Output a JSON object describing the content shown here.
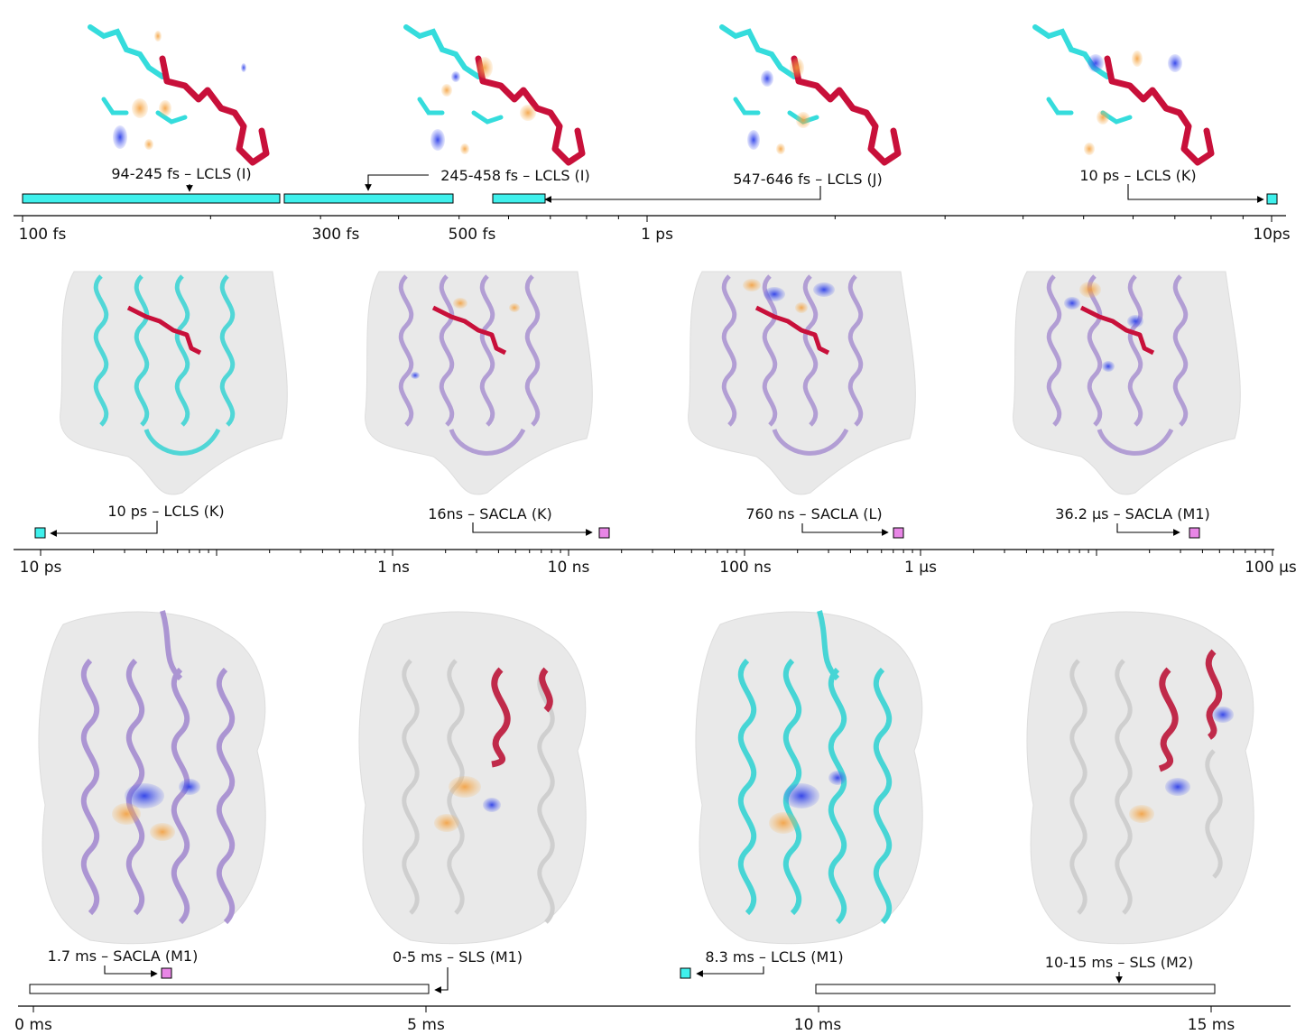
{
  "colors": {
    "lcls": "#3ff0ec",
    "sacla": "#e886e6",
    "sls": "#ffffff",
    "chromophore": "#c8103a",
    "residue": "#35dcdc",
    "helix_lcls": "#36d3d3",
    "helix_sacla": "#a58cd0",
    "helix_sls": "#cfcfcf",
    "helix_moved": "#c02a4a",
    "density_positive": "#f39a34",
    "density_negative": "#3b4ae6",
    "surface": "#e9e9e9"
  },
  "icons": {
    "marker": "square-marker-icon",
    "arrow": "arrowhead-icon"
  },
  "panel1": {
    "ticks": [
      {
        "label": "100 fs"
      },
      {
        "label": "300 fs"
      },
      {
        "label": "500 fs"
      },
      {
        "label": "1 ps"
      },
      {
        "label": "10ps"
      }
    ],
    "labels": {
      "l1": "94-245 fs – LCLS (I)",
      "l2": "245-458 fs – LCLS (I)",
      "l3": "547-646 fs – LCLS (J)",
      "l4": "10 ps – LCLS (K)"
    }
  },
  "panel2": {
    "ticks": [
      {
        "label": "10 ps"
      },
      {
        "label": "1 ns"
      },
      {
        "label": "10 ns"
      },
      {
        "label": "100 ns"
      },
      {
        "label": "1 µs"
      },
      {
        "label": "100 µs"
      }
    ],
    "labels": {
      "l1": "10 ps – LCLS (K)",
      "l2": "16ns – SACLA (K)",
      "l3": "760 ns – SACLA (L)",
      "l4": "36.2 µs – SACLA (M1)"
    }
  },
  "panel3": {
    "ticks": [
      {
        "label": "0 ms"
      },
      {
        "label": "5 ms"
      },
      {
        "label": "10 ms"
      },
      {
        "label": "15 ms"
      }
    ],
    "labels": {
      "l1": "1.7 ms – SACLA (M1)",
      "l2": "0-5 ms – SLS (M1)",
      "l3": "8.3 ms – LCLS (M1)",
      "l4": "10-15 ms – SLS (M2)"
    }
  }
}
